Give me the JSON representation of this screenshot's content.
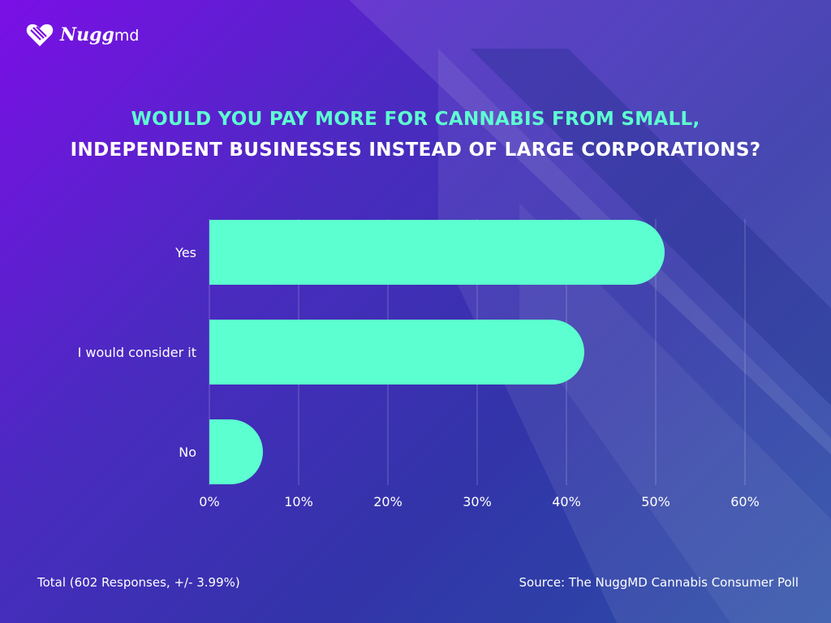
{
  "brand": {
    "logo_main": "Nugg",
    "logo_sub": "md"
  },
  "title": {
    "line1": "WOULD YOU PAY MORE FOR CANNABIS FROM SMALL,",
    "line2": "INDEPENDENT BUSINESSES INSTEAD OF LARGE CORPORATIONS?"
  },
  "chart_data": {
    "type": "bar",
    "orientation": "horizontal",
    "title": "WOULD YOU PAY MORE FOR CANNABIS FROM SMALL, INDEPENDENT BUSINESSES INSTEAD OF LARGE CORPORATIONS?",
    "categories": [
      "Yes",
      "I would consider it",
      "No"
    ],
    "values": [
      51,
      42,
      6
    ],
    "unit": "%",
    "xlim": [
      0,
      60
    ],
    "ticks": [
      "0%",
      "10%",
      "20%",
      "30%",
      "40%",
      "50%",
      "60%"
    ],
    "grid": true,
    "bar_color": "#5cffcf"
  },
  "footer": {
    "total": "Total (602 Responses, +/- 3.99%)",
    "source": "Source: The NuggMD Cannabis Consumer Poll"
  }
}
